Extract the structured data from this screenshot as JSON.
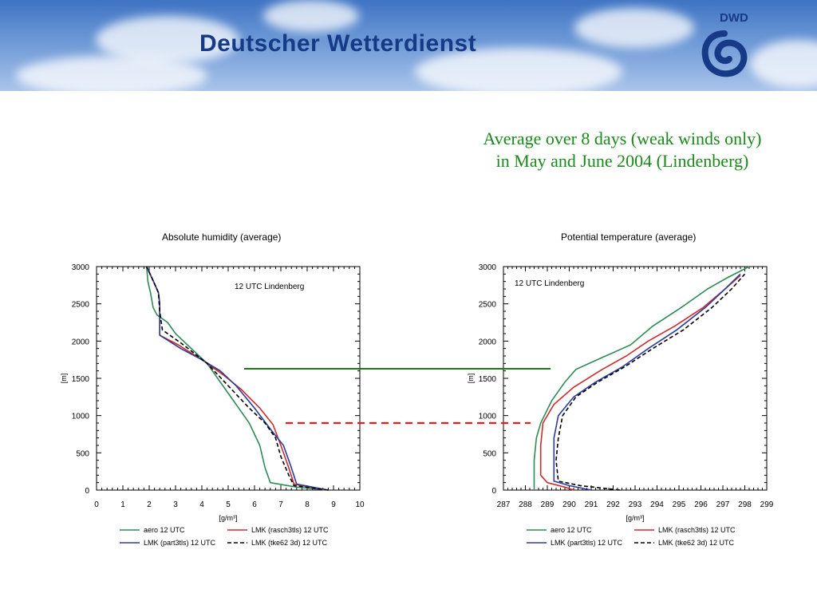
{
  "banner": {
    "title": "Deutscher Wetterdienst",
    "logo_text": "DWD",
    "logo_icon": "dwd-spiral-icon"
  },
  "subtitle": {
    "line1": "Average over 8 days (weak winds only)",
    "line2": "in May and June 2004 (Lindenberg)"
  },
  "colors": {
    "aero": "#2e8b57",
    "rasch": "#d22a2a",
    "part": "#2b3c9e",
    "tke": "#000000",
    "annot_green": "#1a7a1a",
    "annot_red": "#e02020",
    "banner_text": "#163a86"
  },
  "chart_data": [
    {
      "type": "line",
      "title": "Absolute humidity (average)",
      "annotation": "12 UTC  Lindenberg",
      "xlabel": "[g/m³]",
      "ylabel": "[m]",
      "xlim": [
        0,
        10
      ],
      "ylim": [
        0,
        3000
      ],
      "xticks": [
        "0",
        "1",
        "2",
        "3",
        "4",
        "5",
        "6",
        "7",
        "8",
        "9",
        "10"
      ],
      "yticks": [
        "0",
        "500",
        "1000",
        "1500",
        "2000",
        "2500",
        "3000"
      ],
      "series": [
        {
          "name": "aero 12 UTC",
          "style": "solid",
          "color": "#2e8b57",
          "points": [
            [
              8.8,
              0
            ],
            [
              7.6,
              40
            ],
            [
              6.6,
              100
            ],
            [
              6.4,
              300
            ],
            [
              6.2,
              600
            ],
            [
              5.8,
              900
            ],
            [
              5.2,
              1200
            ],
            [
              4.9,
              1350
            ],
            [
              4.6,
              1500
            ],
            [
              4.2,
              1700
            ],
            [
              3.6,
              1900
            ],
            [
              3.0,
              2100
            ],
            [
              2.7,
              2250
            ],
            [
              2.3,
              2350
            ],
            [
              2.15,
              2450
            ],
            [
              2.1,
              2550
            ],
            [
              2.05,
              2650
            ],
            [
              1.95,
              2800
            ],
            [
              1.9,
              3000
            ]
          ]
        },
        {
          "name": "LMK (rasch3tls) 12 UTC",
          "style": "solid",
          "color": "#d22a2a",
          "points": [
            [
              8.7,
              0
            ],
            [
              7.5,
              80
            ],
            [
              7.3,
              300
            ],
            [
              7.0,
              600
            ],
            [
              6.7,
              880
            ],
            [
              6.2,
              1100
            ],
            [
              5.5,
              1350
            ],
            [
              4.8,
              1550
            ],
            [
              4.0,
              1750
            ],
            [
              3.1,
              1950
            ],
            [
              2.4,
              2080
            ],
            [
              2.4,
              2500
            ],
            [
              2.35,
              2650
            ],
            [
              2.1,
              2850
            ],
            [
              1.9,
              3000
            ]
          ]
        },
        {
          "name": "LMK (part3tls) 12 UTC",
          "style": "solid",
          "color": "#2b3c9e",
          "points": [
            [
              8.8,
              0
            ],
            [
              7.6,
              80
            ],
            [
              7.4,
              300
            ],
            [
              7.1,
              600
            ],
            [
              6.6,
              820
            ],
            [
              6.0,
              1100
            ],
            [
              5.3,
              1400
            ],
            [
              4.7,
              1600
            ],
            [
              4.0,
              1750
            ],
            [
              3.2,
              1900
            ],
            [
              2.4,
              2080
            ],
            [
              2.4,
              2500
            ],
            [
              2.35,
              2650
            ],
            [
              2.1,
              2850
            ],
            [
              1.9,
              3000
            ]
          ]
        },
        {
          "name": "LMK (tke62 3d) 12 UTC",
          "style": "dashed",
          "color": "#000000",
          "points": [
            [
              8.8,
              0
            ],
            [
              7.5,
              60
            ],
            [
              7.3,
              200
            ],
            [
              7.0,
              450
            ],
            [
              6.8,
              700
            ],
            [
              6.4,
              900
            ],
            [
              5.8,
              1100
            ],
            [
              5.0,
              1400
            ],
            [
              4.2,
              1700
            ],
            [
              3.3,
              1950
            ],
            [
              2.5,
              2150
            ],
            [
              2.4,
              2400
            ],
            [
              2.35,
              2650
            ],
            [
              2.1,
              2850
            ],
            [
              1.9,
              3000
            ]
          ]
        }
      ]
    },
    {
      "type": "line",
      "title": "Potential temperature (average)",
      "annotation": "12 UTC  Lindenberg",
      "xlabel": "[g/m³]",
      "ylabel": "[m]",
      "xlim": [
        287,
        299
      ],
      "ylim": [
        0,
        3000
      ],
      "xticks": [
        "287",
        "288",
        "289",
        "290",
        "291",
        "292",
        "293",
        "294",
        "295",
        "296",
        "297",
        "298",
        "299"
      ],
      "yticks": [
        "0",
        "500",
        "1000",
        "1500",
        "2000",
        "2500",
        "3000"
      ],
      "series": [
        {
          "name": "aero 12 UTC",
          "style": "solid",
          "color": "#2e8b57",
          "points": [
            [
              288.4,
              0
            ],
            [
              288.4,
              100
            ],
            [
              288.4,
              400
            ],
            [
              288.5,
              700
            ],
            [
              288.7,
              900
            ],
            [
              289.2,
              1200
            ],
            [
              289.8,
              1450
            ],
            [
              290.3,
              1620
            ],
            [
              291.5,
              1780
            ],
            [
              292.8,
              1950
            ],
            [
              293.8,
              2200
            ],
            [
              295.1,
              2450
            ],
            [
              296.3,
              2700
            ],
            [
              297.2,
              2850
            ],
            [
              298.2,
              3000
            ]
          ]
        },
        {
          "name": "LMK (rasch3tls) 12 UTC",
          "style": "solid",
          "color": "#d22a2a",
          "points": [
            [
              290.2,
              0
            ],
            [
              289.8,
              40
            ],
            [
              289.0,
              100
            ],
            [
              288.7,
              200
            ],
            [
              288.7,
              600
            ],
            [
              288.8,
              900
            ],
            [
              289.3,
              1150
            ],
            [
              290.2,
              1380
            ],
            [
              291.5,
              1620
            ],
            [
              292.6,
              1800
            ],
            [
              293.6,
              2000
            ],
            [
              294.8,
              2200
            ],
            [
              296.1,
              2450
            ],
            [
              297.1,
              2700
            ],
            [
              297.8,
              2880
            ]
          ]
        },
        {
          "name": "LMK (part3tls) 12 UTC",
          "style": "solid",
          "color": "#2b3c9e",
          "points": [
            [
              291.0,
              0
            ],
            [
              290.0,
              60
            ],
            [
              289.3,
              120
            ],
            [
              289.3,
              400
            ],
            [
              289.3,
              700
            ],
            [
              289.5,
              1000
            ],
            [
              290.2,
              1250
            ],
            [
              291.2,
              1450
            ],
            [
              292.4,
              1650
            ],
            [
              293.6,
              1900
            ],
            [
              294.9,
              2150
            ],
            [
              296.2,
              2450
            ],
            [
              297.1,
              2700
            ],
            [
              297.8,
              2900
            ]
          ]
        },
        {
          "name": "LMK (tke62 3d) 12 UTC",
          "style": "dashed",
          "color": "#000000",
          "points": [
            [
              292.3,
              0
            ],
            [
              290.5,
              60
            ],
            [
              289.5,
              120
            ],
            [
              289.4,
              400
            ],
            [
              289.5,
              700
            ],
            [
              289.7,
              1000
            ],
            [
              290.3,
              1250
            ],
            [
              291.3,
              1450
            ],
            [
              292.5,
              1650
            ],
            [
              293.8,
              1900
            ],
            [
              295.2,
              2150
            ],
            [
              296.5,
              2450
            ],
            [
              297.4,
              2700
            ],
            [
              298.0,
              2900
            ]
          ]
        }
      ]
    }
  ]
}
